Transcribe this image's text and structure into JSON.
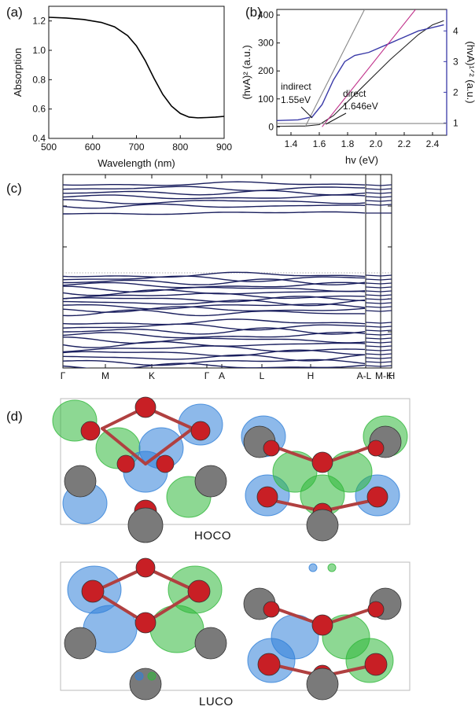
{
  "panels": {
    "a": "(a)",
    "b": "(b)",
    "c": "(c)",
    "d": "(d)"
  },
  "chart_data": [
    {
      "id": "a",
      "type": "line",
      "xlabel": "Wavelength (nm)",
      "ylabel": "Absorption",
      "xlim": [
        500,
        900
      ],
      "ylim": [
        0.4,
        1.3
      ],
      "xticks": [
        500,
        600,
        700,
        800,
        900
      ],
      "yticks": [
        0.4,
        0.6,
        0.8,
        1.0,
        1.2
      ],
      "series": [
        {
          "color": "#000000",
          "x": [
            500,
            540,
            580,
            620,
            650,
            680,
            700,
            720,
            740,
            760,
            780,
            800,
            820,
            840,
            860,
            880,
            900
          ],
          "y": [
            1.225,
            1.22,
            1.21,
            1.19,
            1.16,
            1.1,
            1.03,
            0.93,
            0.81,
            0.7,
            0.62,
            0.57,
            0.545,
            0.54,
            0.542,
            0.545,
            0.55
          ]
        }
      ]
    },
    {
      "id": "b",
      "type": "line",
      "xlabel": "hv (eV)",
      "ylabel": "(hvA)² (a.u.)",
      "ylabel2": "(hvA)¹ᐟ² (a.u.)",
      "xlim": [
        1.3,
        2.5
      ],
      "ylim": [
        -30,
        420
      ],
      "y2lim": [
        0.6,
        4.7
      ],
      "xticks": [
        1.4,
        1.6,
        1.8,
        2.0,
        2.2,
        2.4
      ],
      "yticks": [
        0,
        100,
        200,
        300,
        400
      ],
      "y2ticks": [
        1,
        2,
        3,
        4
      ],
      "series": [
        {
          "color": "#222222",
          "axis": "left",
          "x": [
            1.3,
            1.5,
            1.6,
            1.7,
            1.8,
            1.9,
            2.0,
            2.1,
            2.2,
            2.3,
            2.4,
            2.48
          ],
          "y": [
            2,
            3,
            8,
            40,
            90,
            140,
            190,
            240,
            285,
            330,
            365,
            380
          ]
        },
        {
          "color": "#3a3aa8",
          "axis": "right",
          "x": [
            1.3,
            1.45,
            1.55,
            1.62,
            1.7,
            1.78,
            1.85,
            1.95,
            2.1,
            2.3,
            2.48
          ],
          "y": [
            1.08,
            1.1,
            1.2,
            1.6,
            2.4,
            3.0,
            3.2,
            3.3,
            3.6,
            4.0,
            4.2
          ]
        },
        {
          "color": "#888888",
          "axis": "left",
          "x": [
            1.5,
            1.92
          ],
          "y": [
            0,
            420
          ]
        },
        {
          "color": "#c0308a",
          "axis": "left",
          "x": [
            1.62,
            2.28
          ],
          "y": [
            0,
            420
          ]
        },
        {
          "color": "#888888",
          "axis": "left",
          "x": [
            1.3,
            2.5
          ],
          "y": [
            12,
            12
          ]
        }
      ],
      "annotations": [
        {
          "text1": "indirect",
          "text2": "1.55eV"
        },
        {
          "text1": "direct",
          "text2": "1.646eV"
        }
      ]
    },
    {
      "id": "c",
      "type": "line",
      "xticklabels": [
        "Γ",
        "M",
        "K",
        "Γ",
        "A",
        "L",
        "H",
        "A-L",
        "M-K",
        "H"
      ]
    }
  ],
  "orbitals": {
    "top_label": "HOCO",
    "bottom_label": "LUCO"
  },
  "colors": {
    "band": "#1a1f5e",
    "oxygen": "#c81f25",
    "metal": "#7a7a7a",
    "lobe_green": "#2fb83a",
    "lobe_blue": "#2f7fd8",
    "bond": "#b04040"
  }
}
